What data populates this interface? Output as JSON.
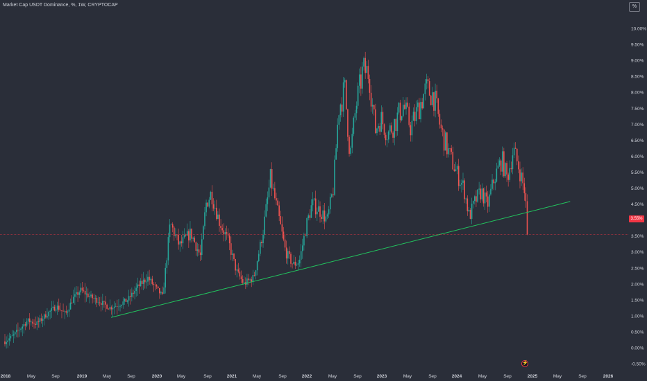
{
  "header": {
    "title": "Market Cap USDT Dominance, %, 1W, CRYPTOCAP"
  },
  "scale_button": "%",
  "price_badge": "3.55%",
  "colors": {
    "background": "#2a2e39",
    "up": "#26a69a",
    "down": "#ef5350",
    "trendline": "#22c55e",
    "price_line": "#f23645",
    "text": "#d1d4dc"
  },
  "chart_data": {
    "type": "candlestick",
    "title": "Market Cap USDT Dominance, %, 1W, CRYPTOCAP",
    "ylabel": "%",
    "ylim": [
      -0.5,
      10.2
    ],
    "y_ticks": [
      "10.00%",
      "9.50%",
      "9.00%",
      "8.50%",
      "8.00%",
      "7.50%",
      "7.00%",
      "6.50%",
      "6.00%",
      "5.50%",
      "5.00%",
      "4.50%",
      "4.00%",
      "3.50%",
      "3.00%",
      "2.50%",
      "2.00%",
      "1.50%",
      "1.00%",
      "0.50%",
      "0.00%",
      "-0.50%"
    ],
    "x_ticks": [
      "2018",
      "May",
      "Sep",
      "2019",
      "May",
      "Sep",
      "2020",
      "May",
      "Sep",
      "2021",
      "May",
      "Sep",
      "2022",
      "May",
      "Sep",
      "2023",
      "May",
      "Sep",
      "2024",
      "May",
      "Sep",
      "2025",
      "May",
      "Sep",
      "2026"
    ],
    "x_range": [
      2018.0,
      2026.2
    ],
    "series_close_path": [
      [
        2018.0,
        0.2
      ],
      [
        2018.1,
        0.35
      ],
      [
        2018.2,
        0.6
      ],
      [
        2018.3,
        0.85
      ],
      [
        2018.42,
        0.75
      ],
      [
        2018.55,
        1.05
      ],
      [
        2018.68,
        1.3
      ],
      [
        2018.8,
        1.05
      ],
      [
        2018.9,
        1.55
      ],
      [
        2019.0,
        1.8
      ],
      [
        2019.12,
        1.6
      ],
      [
        2019.25,
        1.45
      ],
      [
        2019.38,
        1.25
      ],
      [
        2019.5,
        1.35
      ],
      [
        2019.62,
        1.5
      ],
      [
        2019.75,
        1.9
      ],
      [
        2019.88,
        2.2
      ],
      [
        2019.98,
        1.9
      ],
      [
        2020.08,
        1.6
      ],
      [
        2020.18,
        3.9
      ],
      [
        2020.3,
        3.2
      ],
      [
        2020.45,
        3.6
      ],
      [
        2020.58,
        2.85
      ],
      [
        2020.65,
        4.5
      ],
      [
        2020.72,
        4.85
      ],
      [
        2020.82,
        4.0
      ],
      [
        2020.95,
        3.3
      ],
      [
        2021.05,
        2.4
      ],
      [
        2021.15,
        2.0
      ],
      [
        2021.28,
        2.2
      ],
      [
        2021.4,
        3.6
      ],
      [
        2021.5,
        5.3
      ],
      [
        2021.6,
        4.2
      ],
      [
        2021.7,
        3.0
      ],
      [
        2021.8,
        2.6
      ],
      [
        2021.88,
        2.7
      ],
      [
        2021.98,
        3.9
      ],
      [
        2022.05,
        4.5
      ],
      [
        2022.15,
        4.3
      ],
      [
        2022.25,
        4.0
      ],
      [
        2022.33,
        5.0
      ],
      [
        2022.4,
        7.5
      ],
      [
        2022.48,
        8.1
      ],
      [
        2022.55,
        6.0
      ],
      [
        2022.63,
        7.6
      ],
      [
        2022.72,
        8.7
      ],
      [
        2022.8,
        8.6
      ],
      [
        2022.88,
        6.8
      ],
      [
        2022.95,
        7.2
      ],
      [
        2023.05,
        6.7
      ],
      [
        2023.15,
        7.1
      ],
      [
        2023.25,
        7.6
      ],
      [
        2023.35,
        6.9
      ],
      [
        2023.45,
        7.5
      ],
      [
        2023.55,
        8.1
      ],
      [
        2023.65,
        7.9
      ],
      [
        2023.75,
        6.8
      ],
      [
        2023.85,
        6.1
      ],
      [
        2023.95,
        5.5
      ],
      [
        2024.05,
        5.0
      ],
      [
        2024.12,
        4.1
      ],
      [
        2024.2,
        4.6
      ],
      [
        2024.28,
        4.9
      ],
      [
        2024.36,
        4.45
      ],
      [
        2024.45,
        5.3
      ],
      [
        2024.55,
        5.9
      ],
      [
        2024.62,
        5.3
      ],
      [
        2024.7,
        6.2
      ],
      [
        2024.78,
        5.6
      ],
      [
        2024.85,
        4.9
      ],
      [
        2024.9,
        3.55
      ]
    ],
    "trendline": {
      "from": [
        2019.4,
        0.95
      ],
      "to": [
        2025.45,
        4.58
      ]
    },
    "last_value": 3.55
  }
}
